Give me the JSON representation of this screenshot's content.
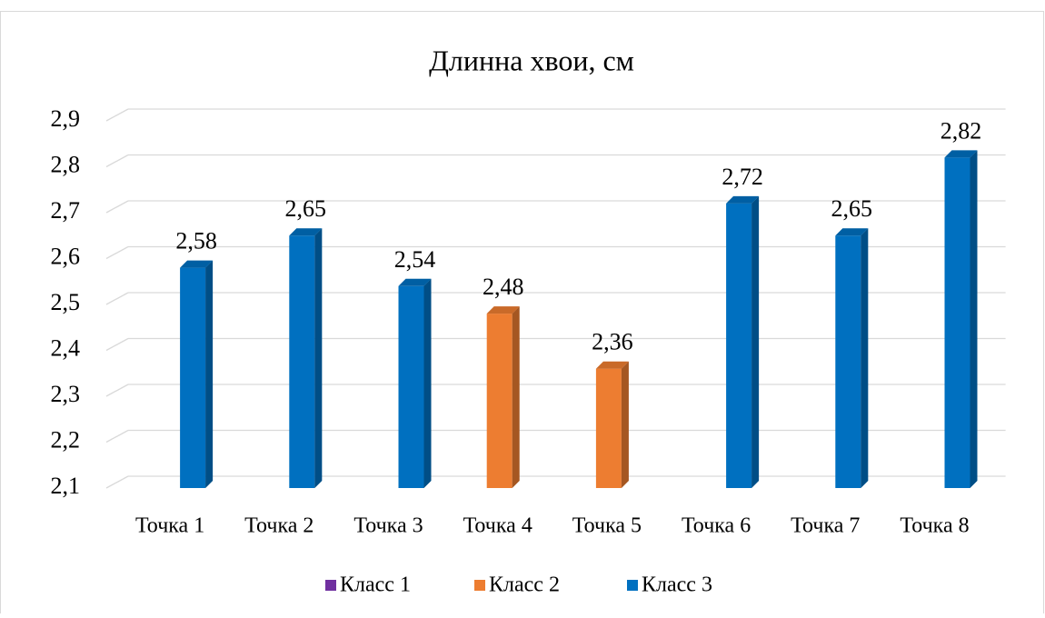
{
  "chart_data": {
    "type": "bar3d",
    "title": "Длинна хвои, см",
    "categories": [
      "Точка 1",
      "Точка 2",
      "Точка 3",
      "Точка 4",
      "Точка 5",
      "Точка 6",
      "Точка 7",
      "Точка 8"
    ],
    "series": [
      {
        "name": "Класс 1",
        "color": "#7030a0",
        "values": [
          null,
          null,
          null,
          null,
          null,
          null,
          null,
          null
        ]
      },
      {
        "name": "Класс 2",
        "color": "#ed7d31",
        "values": [
          null,
          null,
          null,
          2.48,
          2.36,
          null,
          null,
          null
        ],
        "value_labels": [
          null,
          null,
          null,
          "2,48",
          "2,36",
          null,
          null,
          null
        ]
      },
      {
        "name": "Класс 3",
        "color": "#0070c0",
        "values": [
          2.58,
          2.65,
          2.54,
          null,
          null,
          2.72,
          2.65,
          2.82
        ],
        "value_labels": [
          "2,58",
          "2,65",
          "2,54",
          null,
          null,
          "2,72",
          "2,65",
          "2,82"
        ]
      }
    ],
    "ylim": [
      2.1,
      2.9
    ],
    "yticks": [
      {
        "value": 2.1,
        "label": "2,1"
      },
      {
        "value": 2.2,
        "label": "2,2"
      },
      {
        "value": 2.3,
        "label": "2,3"
      },
      {
        "value": 2.4,
        "label": "2,4"
      },
      {
        "value": 2.5,
        "label": "2,5"
      },
      {
        "value": 2.6,
        "label": "2,6"
      },
      {
        "value": 2.7,
        "label": "2,7"
      },
      {
        "value": 2.8,
        "label": "2,8"
      },
      {
        "value": 2.9,
        "label": "2,9"
      }
    ],
    "grid": true,
    "legend": "bottom"
  }
}
